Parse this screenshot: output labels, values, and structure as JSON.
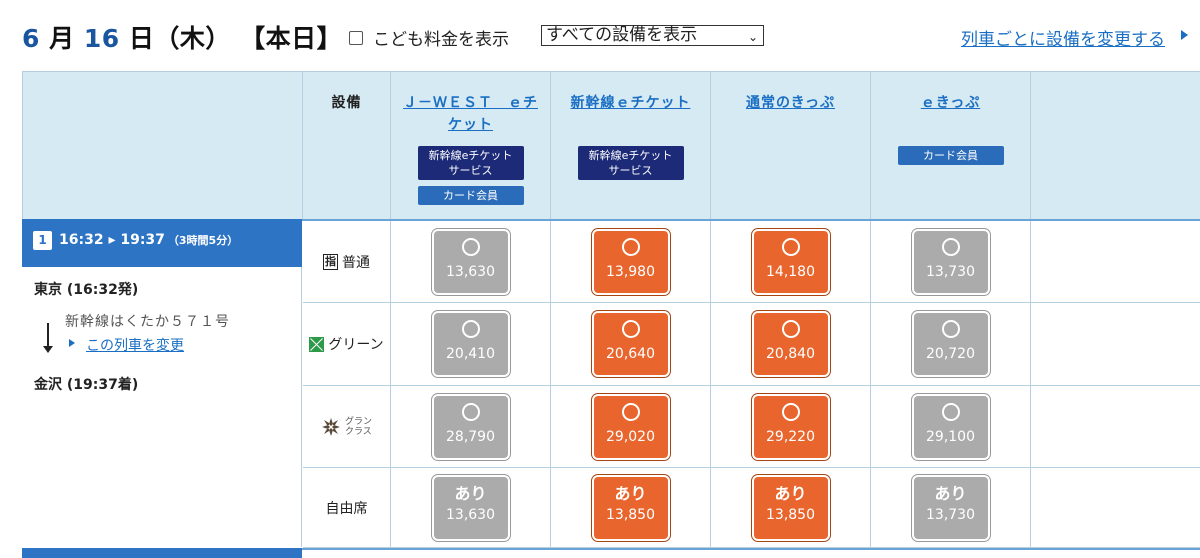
{
  "header": {
    "date_month": "6",
    "date_month_unit": "月",
    "date_day": "16",
    "date_day_unit": "日",
    "date_weekday": "（木）",
    "date_today": "【本日】",
    "child_fare_label": "こども料金を表示",
    "equipment_select_value": "すべての設備を表示",
    "change_per_train_link": "列車ごとに設備を変更する"
  },
  "columns": {
    "equipment_header": "設備",
    "products": [
      {
        "title_line1": "Ｊ－ＷＥＳＴ　ｅチ",
        "title_line2": "ケット",
        "badges": [
          "新幹線eチケットサービス",
          "カード会員"
        ]
      },
      {
        "title_line1": "新幹線ｅチケット",
        "title_line2": "",
        "badges": [
          "新幹線eチケットサービス"
        ]
      },
      {
        "title_line1": "通常のきっぷ",
        "title_line2": "",
        "badges": []
      },
      {
        "title_line1": "ｅきっぷ",
        "title_line2": "",
        "badges": [
          "カード会員"
        ]
      }
    ],
    "badge_service_line1": "新幹線eチケット",
    "badge_service_line2": "サービス",
    "badge_card": "カード会員"
  },
  "train": {
    "number": "1",
    "time_range": "16:32 ▸ 19:37",
    "duration": "（3時間5分）",
    "departure": "東京 (16:32発)",
    "name": "新幹線はくたか５７１号",
    "change_link": "この列車を変更",
    "arrival": "金沢 (19:37着)"
  },
  "classes": [
    {
      "label": "普通",
      "icon": "shitei-icon",
      "icon_text": "指",
      "prices": [
        "13,630",
        "13,980",
        "14,180",
        "13,730"
      ],
      "mark": "○"
    },
    {
      "label": "グリーン",
      "icon": "green-car-icon",
      "prices": [
        "20,410",
        "20,640",
        "20,840",
        "20,720"
      ],
      "mark": "○"
    },
    {
      "label_line1": "グラン",
      "label_line2": "クラス",
      "icon": "gran-class-icon",
      "prices": [
        "28,790",
        "29,020",
        "29,220",
        "29,100"
      ],
      "mark": "○"
    },
    {
      "label": "自由席",
      "icon": "",
      "prices": [
        "13,630",
        "13,850",
        "13,850",
        "13,730"
      ],
      "mark": "あり"
    }
  ],
  "colors": {
    "unavailable": "#ababab",
    "available": "#e8662d",
    "accent": "#1a6fc4",
    "header_bg": "#d6eaf3",
    "train_head": "#2e74c5"
  }
}
